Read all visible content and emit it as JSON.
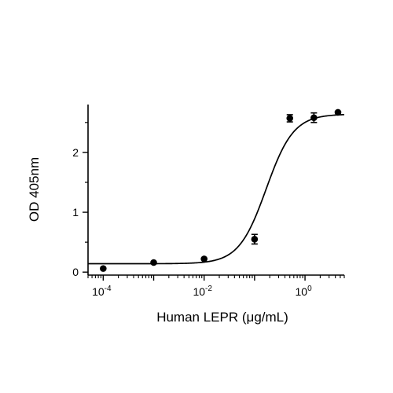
{
  "chart_data": {
    "type": "scatter",
    "xlabel": "Human LEPR (μg/mL)",
    "ylabel": "OD 405nm",
    "x_scale": "log10",
    "xlim": [
      5e-05,
      6
    ],
    "ylim": [
      -0.05,
      2.8
    ],
    "x_ticks": [
      {
        "value": 0.0001,
        "base": "10",
        "exp": "-4"
      },
      {
        "value": 0.01,
        "base": "10",
        "exp": "-2"
      },
      {
        "value": 1,
        "base": "10",
        "exp": "0"
      }
    ],
    "y_ticks": [
      {
        "value": 0,
        "label": "0"
      },
      {
        "value": 1,
        "label": "1"
      },
      {
        "value": 2,
        "label": "2"
      }
    ],
    "series": [
      {
        "points": [
          {
            "x": 0.0001,
            "y": 0.06,
            "err": 0
          },
          {
            "x": 0.001,
            "y": 0.16,
            "err": 0
          },
          {
            "x": 0.01,
            "y": 0.22,
            "err": 0
          },
          {
            "x": 0.1,
            "y": 0.55,
            "err": 0.08
          },
          {
            "x": 0.5,
            "y": 2.57,
            "err": 0.06
          },
          {
            "x": 1.5,
            "y": 2.58,
            "err": 0.08
          },
          {
            "x": 4.5,
            "y": 2.67,
            "err": 0
          }
        ],
        "fit": {
          "model": "4PL",
          "bottom": 0.14,
          "top": 2.64,
          "ec50": 0.17,
          "hill": 1.6
        }
      }
    ],
    "grid": false,
    "legend": "none",
    "colors": {
      "marker": "#000000",
      "line": "#000000",
      "axis": "#000000"
    }
  }
}
